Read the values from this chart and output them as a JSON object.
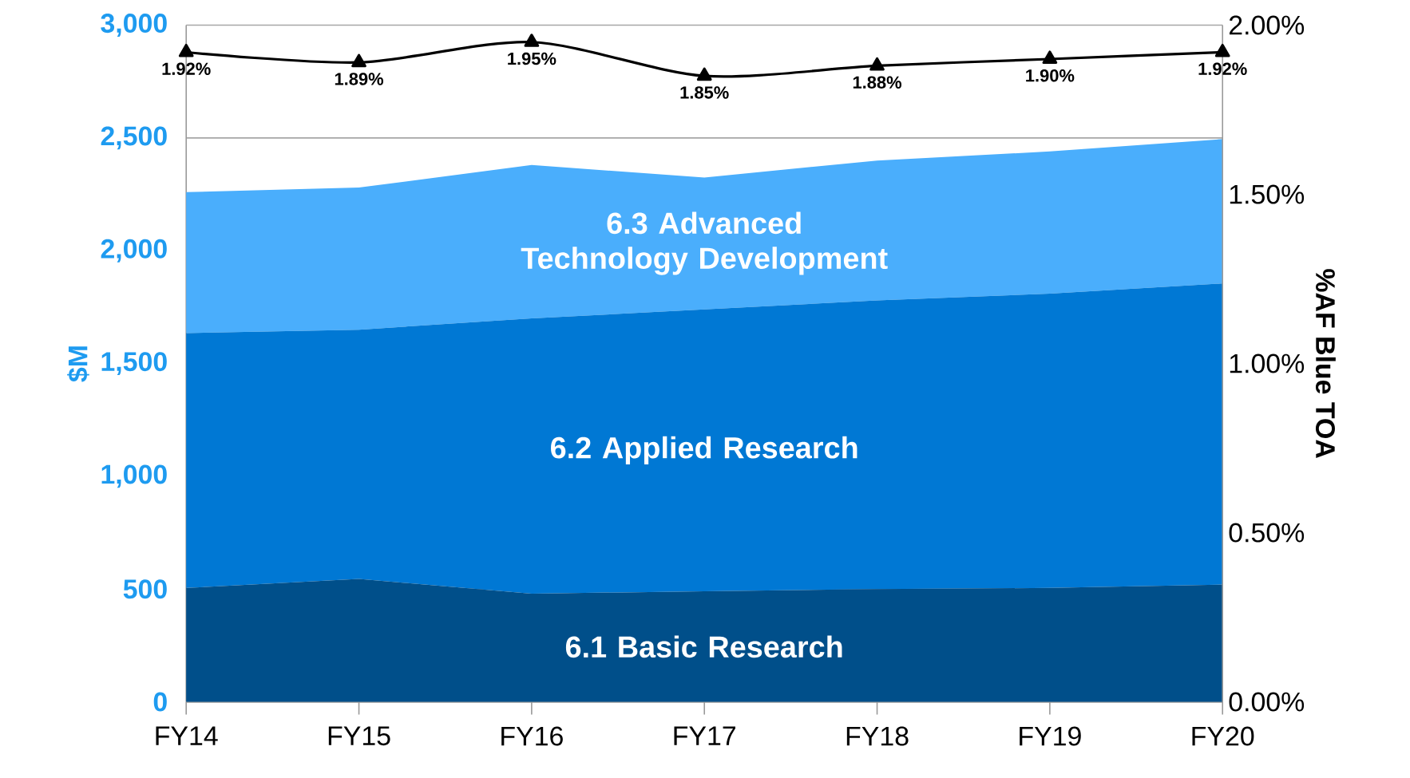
{
  "chart_data": {
    "type": "area",
    "stacked": true,
    "grid": "y",
    "categories": [
      "FY14",
      "FY15",
      "FY16",
      "FY17",
      "FY18",
      "FY19",
      "FY20"
    ],
    "ylim": [
      0,
      3000
    ],
    "yticks": [
      0,
      500,
      {
        "value": 1000,
        "label": "1,000"
      },
      {
        "value": 1500,
        "label": "1,500"
      },
      {
        "value": 2000,
        "label": "2,000"
      },
      {
        "value": 2500,
        "label": "2,500"
      },
      {
        "value": 3000,
        "label": "3,000"
      }
    ],
    "y2lim": [
      0,
      2
    ],
    "y2ticks": [
      {
        "value": 0,
        "label": "0.00%"
      },
      {
        "value": 0.5,
        "label": "0.50%"
      },
      {
        "value": 1,
        "label": "1.00%"
      },
      {
        "value": 1.5,
        "label": "1.50%"
      },
      {
        "value": 2,
        "label": "2.00%"
      }
    ],
    "ylabel": "$M",
    "y2label": "%AF Blue TOA",
    "series": [
      {
        "name": "6.1 Basic Research",
        "color": "#004f8a",
        "values": [
          505,
          545,
          480,
          490,
          500,
          505,
          520
        ]
      },
      {
        "name": "6.2 Applied Research",
        "color": "#0078d4",
        "values": [
          1130,
          1105,
          1220,
          1250,
          1280,
          1305,
          1335
        ]
      },
      {
        "name": "6.3 Advanced Technology Development",
        "color": "#4aaefc",
        "values": [
          625,
          630,
          680,
          585,
          620,
          630,
          640
        ]
      },
      {
        "type": "line",
        "axis": "y2",
        "color": "#000000",
        "marker": "triangle",
        "values": [
          1.92,
          1.89,
          1.95,
          1.85,
          1.88,
          1.9,
          1.92
        ],
        "value_labels": [
          "1.92%",
          "1.89%",
          "1.95%",
          "1.85%",
          "1.88%",
          "1.90%",
          "1.92%"
        ]
      }
    ]
  }
}
